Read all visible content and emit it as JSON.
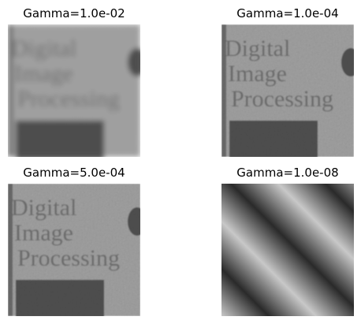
{
  "panels": [
    {
      "title": "Gamma=1.0e-02"
    },
    {
      "title": "Gamma=1.0e-04"
    },
    {
      "title": "Gamma=5.0e-04"
    },
    {
      "title": "Gamma=1.0e-08"
    }
  ],
  "image_text": [
    "Digital",
    "Image",
    "Processing"
  ]
}
